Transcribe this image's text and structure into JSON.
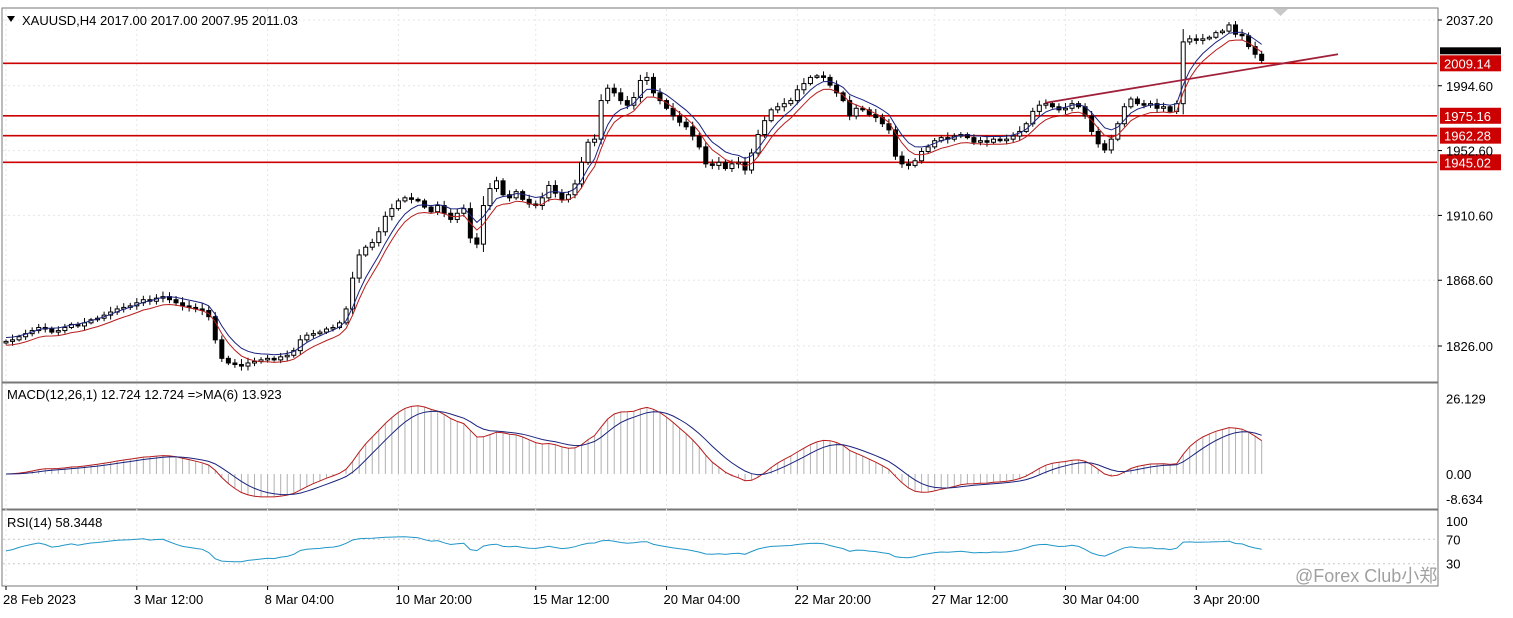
{
  "chart_data": {
    "type": "candlestick",
    "symbol_header": "XAUUSD,H4  2017.00 2017.00 2007.95 2011.03",
    "price_axis": {
      "range": [
        1797,
        2045
      ],
      "ticks": [
        "2037.20",
        "1994.60",
        "1952.60",
        "1910.60",
        "1868.60",
        "1826.00"
      ]
    },
    "levels": [
      {
        "label": "2009.14",
        "value": 2009.14
      },
      {
        "label": "1975.16",
        "value": 1975.16
      },
      {
        "label": "1962.28",
        "value": 1962.28
      },
      {
        "label": "1945.02",
        "value": 1945.02
      }
    ],
    "trendline": {
      "from": [
        1045,
        1983.5
      ],
      "to": [
        1338,
        2015
      ]
    },
    "x_labels": [
      {
        "text": "28 Feb 2023",
        "i": 0
      },
      {
        "text": "3 Mar 12:00",
        "i": 20
      },
      {
        "text": "8 Mar 04:00",
        "i": 40
      },
      {
        "text": "10 Mar 20:00",
        "i": 60
      },
      {
        "text": "15 Mar 12:00",
        "i": 81
      },
      {
        "text": "20 Mar 04:00",
        "i": 101
      },
      {
        "text": "22 Mar 20:00",
        "i": 121
      },
      {
        "text": "27 Mar 12:00",
        "i": 142
      },
      {
        "text": "30 Mar 04:00",
        "i": 162
      },
      {
        "text": "3 Apr 20:00",
        "i": 182
      }
    ],
    "closes": [
      1829,
      1830,
      1832,
      1834,
      1836,
      1838,
      1837,
      1835,
      1836,
      1838,
      1840,
      1839,
      1841,
      1843,
      1844,
      1846,
      1848,
      1850,
      1851,
      1852,
      1854,
      1856,
      1855,
      1857,
      1858,
      1856,
      1854,
      1852,
      1851,
      1850,
      1849,
      1845,
      1830,
      1818,
      1815,
      1814,
      1813,
      1815,
      1816,
      1817,
      1818,
      1817,
      1819,
      1820,
      1823,
      1830,
      1833,
      1834,
      1835,
      1837,
      1838,
      1841,
      1850,
      1870,
      1885,
      1890,
      1893,
      1900,
      1910,
      1915,
      1920,
      1922,
      1921,
      1920,
      1916,
      1913,
      1917,
      1912,
      1908,
      1912,
      1915,
      1896,
      1892,
      1917,
      1928,
      1933,
      1924,
      1922,
      1926,
      1921,
      1918,
      1917,
      1922,
      1930,
      1925,
      1921,
      1924,
      1931,
      1945,
      1958,
      1960,
      1985,
      1993,
      1990,
      1985,
      1982,
      1987,
      1998,
      2000,
      1990,
      1985,
      1980,
      1975,
      1971,
      1968,
      1962,
      1955,
      1944,
      1943,
      1945,
      1941,
      1944,
      1945,
      1940,
      1951,
      1963,
      1972,
      1979,
      1981,
      1983,
      1985,
      1992,
      1996,
      2000,
      2001,
      2000,
      1995,
      1990,
      1985,
      1975,
      1980,
      1979,
      1976,
      1974,
      1970,
      1966,
      1949,
      1944,
      1943,
      1946,
      1952,
      1955,
      1959,
      1961,
      1960,
      1962,
      1963,
      1961,
      1958,
      1959,
      1958,
      1960,
      1959,
      1960,
      1962,
      1965,
      1970,
      1978,
      1982,
      1983,
      1981,
      1979,
      1980,
      1983,
      1981,
      1975,
      1965,
      1957,
      1953,
      1960,
      1970,
      1981,
      1986,
      1983,
      1982,
      1983,
      1980,
      1981,
      1978,
      1983,
      2023,
      2025,
      2024,
      2025,
      2026,
      2029,
      2030,
      2034,
      2028,
      2027,
      2020,
      2015,
      2011
    ],
    "macd": {
      "header": "MACD(12,26,1) 12.724 12.724  =>MA(6) 13.923",
      "range": [
        -9,
        28
      ],
      "ticks": [
        "26.129",
        "0.00",
        "-8.634"
      ]
    },
    "rsi": {
      "header": "RSI(14) 58.3448",
      "ticks": [
        "100",
        "70",
        "30"
      ]
    },
    "colors": {
      "bull_candle": "#000000",
      "bear_candle": "#000000",
      "level_line": "#cc0000",
      "trendline": "#a0203a",
      "ma_fast": "#1a237e",
      "ma_slow": "#b71c1c",
      "rsi_line": "#2196c8",
      "histogram": "#b0b0b0"
    }
  },
  "watermark": "@Forex Club小郑"
}
